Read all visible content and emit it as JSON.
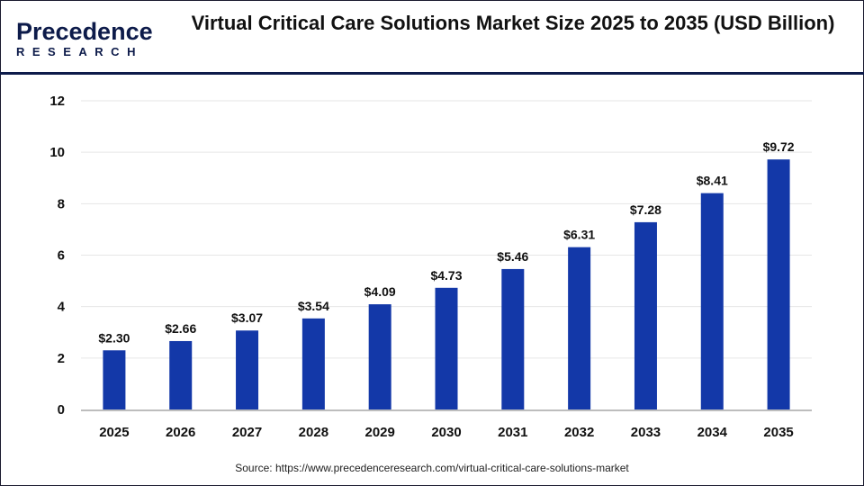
{
  "logo": {
    "line1": "Precedence",
    "line2": "RESEARCH"
  },
  "title": "Virtual Critical Care Solutions Market Size 2025 to 2035 (USD Billion)",
  "source": "Source: https://www.precedenceresearch.com/virtual-critical-care-solutions-market",
  "chart_data": {
    "type": "bar",
    "title": "Virtual Critical Care Solutions Market Size 2025 to 2035 (USD Billion)",
    "categories": [
      "2025",
      "2026",
      "2027",
      "2028",
      "2029",
      "2030",
      "2031",
      "2032",
      "2033",
      "2034",
      "2035"
    ],
    "values": [
      2.3,
      2.66,
      3.07,
      3.54,
      4.09,
      4.73,
      5.46,
      6.31,
      7.28,
      8.41,
      9.72
    ],
    "data_labels": [
      "$2.30",
      "$2.66",
      "$3.07",
      "$3.54",
      "$4.09",
      "$4.73",
      "$5.46",
      "$6.31",
      "$7.28",
      "$8.41",
      "$9.72"
    ],
    "ylim": [
      0,
      12
    ],
    "yticks": [
      0,
      2,
      4,
      6,
      8,
      10,
      12
    ],
    "grid": true,
    "bar_color": "#1338a8"
  }
}
